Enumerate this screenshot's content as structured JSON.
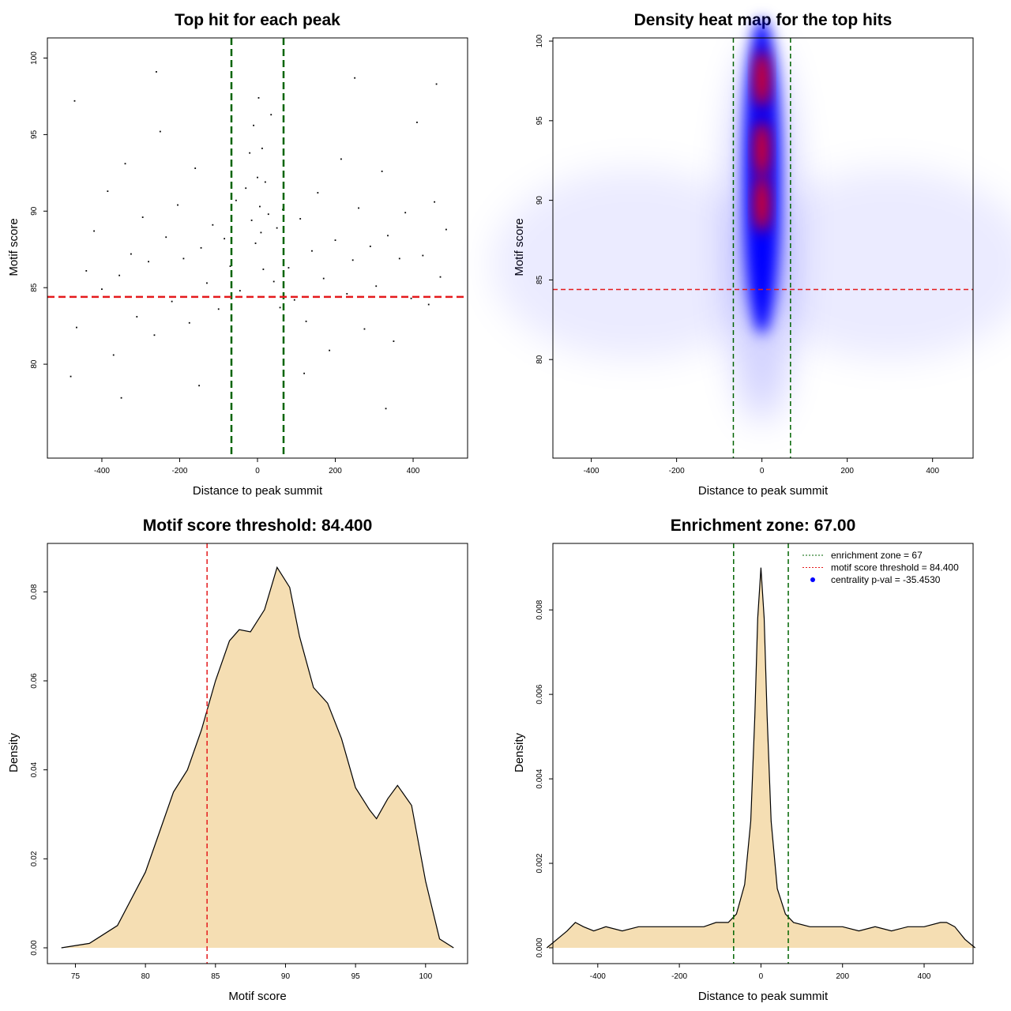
{
  "chart_data": [
    {
      "type": "scatter",
      "title": "Top hit for each peak",
      "xlabel": "Distance to peak summit",
      "ylabel": "Motif score",
      "xlim": [
        -500,
        500
      ],
      "ylim": [
        75,
        100
      ],
      "xticks": [
        "-400",
        "-200",
        "0",
        "200",
        "400"
      ],
      "yticks": [
        "80",
        "85",
        "90",
        "95",
        "100"
      ],
      "vlines": [
        -67,
        67
      ],
      "hline": 84.4,
      "vline_color": "#006400",
      "hline_color": "#e41a1c",
      "point_color": "#000000",
      "points": [
        [
          -480,
          79.2
        ],
        [
          -465,
          82.4
        ],
        [
          -440,
          86.1
        ],
        [
          -420,
          88.7
        ],
        [
          -400,
          84.9
        ],
        [
          -385,
          91.3
        ],
        [
          -370,
          80.6
        ],
        [
          -355,
          85.8
        ],
        [
          -340,
          93.1
        ],
        [
          -325,
          87.2
        ],
        [
          -310,
          83.1
        ],
        [
          -295,
          89.6
        ],
        [
          -280,
          86.7
        ],
        [
          -265,
          81.9
        ],
        [
          -250,
          95.2
        ],
        [
          -235,
          88.3
        ],
        [
          -220,
          84.1
        ],
        [
          -205,
          90.4
        ],
        [
          -190,
          86.9
        ],
        [
          -175,
          82.7
        ],
        [
          -160,
          92.8
        ],
        [
          -145,
          87.6
        ],
        [
          -130,
          85.3
        ],
        [
          -115,
          89.1
        ],
        [
          -100,
          83.6
        ],
        [
          -85,
          88.2
        ],
        [
          -70,
          86.4
        ],
        [
          -55,
          90.7
        ],
        [
          -45,
          84.8
        ],
        [
          -30,
          91.5
        ],
        [
          -20,
          93.8
        ],
        [
          -15,
          89.4
        ],
        [
          -10,
          95.6
        ],
        [
          -5,
          87.9
        ],
        [
          0,
          92.2
        ],
        [
          3,
          97.4
        ],
        [
          6,
          90.3
        ],
        [
          9,
          88.6
        ],
        [
          12,
          94.1
        ],
        [
          15,
          86.2
        ],
        [
          20,
          91.9
        ],
        [
          28,
          89.8
        ],
        [
          35,
          96.3
        ],
        [
          42,
          85.4
        ],
        [
          50,
          88.9
        ],
        [
          58,
          83.7
        ],
        [
          65,
          90.1
        ],
        [
          80,
          86.3
        ],
        [
          95,
          84.2
        ],
        [
          110,
          89.5
        ],
        [
          125,
          82.8
        ],
        [
          140,
          87.4
        ],
        [
          155,
          91.2
        ],
        [
          170,
          85.6
        ],
        [
          185,
          80.9
        ],
        [
          200,
          88.1
        ],
        [
          215,
          93.4
        ],
        [
          230,
          84.6
        ],
        [
          245,
          86.8
        ],
        [
          260,
          90.2
        ],
        [
          275,
          82.3
        ],
        [
          290,
          87.7
        ],
        [
          305,
          85.1
        ],
        [
          320,
          92.6
        ],
        [
          335,
          88.4
        ],
        [
          350,
          81.5
        ],
        [
          365,
          86.9
        ],
        [
          380,
          89.9
        ],
        [
          395,
          84.3
        ],
        [
          410,
          95.8
        ],
        [
          425,
          87.1
        ],
        [
          440,
          83.9
        ],
        [
          455,
          90.6
        ],
        [
          470,
          85.7
        ],
        [
          485,
          88.8
        ],
        [
          -470,
          97.2
        ],
        [
          -350,
          77.8
        ],
        [
          -150,
          78.6
        ],
        [
          120,
          79.4
        ],
        [
          330,
          77.1
        ],
        [
          460,
          98.3
        ],
        [
          -260,
          99.1
        ],
        [
          250,
          98.7
        ]
      ]
    },
    {
      "type": "heatmap",
      "title": "Density heat map for the top hits",
      "xlabel": "Distance to peak summit",
      "ylabel": "Motif score",
      "xlim": [
        -500,
        500
      ],
      "ylim": [
        75,
        100
      ],
      "xticks": [
        "-400",
        "-200",
        "0",
        "200",
        "400"
      ],
      "yticks": [
        "80",
        "85",
        "90",
        "95",
        "100"
      ],
      "vlines": [
        -67,
        67
      ],
      "hline": 84.4,
      "colors": [
        "#ffffff",
        "#0000ff",
        "#ff0000"
      ],
      "hotspots": [
        [
          0,
          89.8
        ],
        [
          0,
          93.2
        ],
        [
          0,
          97.6
        ]
      ]
    },
    {
      "type": "area",
      "title": "Motif score threshold: 84.400",
      "xlabel": "Motif score",
      "ylabel": "Density",
      "xlim": [
        73,
        103
      ],
      "ylim": [
        0,
        0.09
      ],
      "xticks": [
        "75",
        "80",
        "85",
        "90",
        "95",
        "100"
      ],
      "yticks": [
        "0.00",
        "0.02",
        "0.04",
        "0.06",
        "0.08"
      ],
      "vline": 84.4,
      "fill_color": "#f5deb3",
      "x": [
        74,
        76,
        78,
        80,
        81,
        82,
        83,
        84,
        85,
        86,
        86.7,
        87.5,
        88.5,
        89.4,
        90.3,
        91,
        92,
        93,
        94,
        95,
        96,
        96.5,
        97.3,
        98,
        99,
        100,
        101,
        102
      ],
      "y": [
        0.0,
        0.001,
        0.005,
        0.017,
        0.026,
        0.035,
        0.04,
        0.049,
        0.06,
        0.069,
        0.0715,
        0.071,
        0.076,
        0.0855,
        0.081,
        0.07,
        0.0585,
        0.055,
        0.047,
        0.036,
        0.031,
        0.029,
        0.0335,
        0.0365,
        0.032,
        0.015,
        0.002,
        0.0
      ]
    },
    {
      "type": "area",
      "title": "Enrichment zone: 67.00",
      "xlabel": "Distance to peak summit",
      "ylabel": "Density",
      "xlim": [
        -510,
        520
      ],
      "ylim": [
        0,
        0.0092
      ],
      "xticks": [
        "-400",
        "-200",
        "0",
        "200",
        "400"
      ],
      "yticks": [
        "0.000",
        "0.002",
        "0.004",
        "0.006",
        "0.008"
      ],
      "vlines": [
        -67,
        67
      ],
      "fill_color": "#f5deb3",
      "legend_entries": [
        "enrichment zone = 67",
        "motif score threshold = 84.400",
        "centrality p-val = -35.4530"
      ],
      "legend_position": "top-right",
      "x": [
        -525,
        -500,
        -475,
        -455,
        -435,
        -410,
        -380,
        -340,
        -300,
        -260,
        -220,
        -180,
        -140,
        -110,
        -80,
        -60,
        -40,
        -25,
        -15,
        -8,
        0,
        8,
        15,
        25,
        40,
        60,
        80,
        120,
        160,
        200,
        240,
        280,
        320,
        360,
        400,
        440,
        455,
        475,
        500,
        525
      ],
      "y": [
        0.0,
        0.0002,
        0.0004,
        0.0006,
        0.0005,
        0.0004,
        0.0005,
        0.0004,
        0.0005,
        0.0005,
        0.0005,
        0.0005,
        0.0005,
        0.0006,
        0.0006,
        0.0008,
        0.0015,
        0.003,
        0.0055,
        0.0078,
        0.009,
        0.0078,
        0.0055,
        0.003,
        0.0014,
        0.0008,
        0.0006,
        0.0005,
        0.0005,
        0.0005,
        0.0004,
        0.0005,
        0.0004,
        0.0005,
        0.0005,
        0.0006,
        0.0006,
        0.0005,
        0.0002,
        0.0
      ]
    }
  ]
}
